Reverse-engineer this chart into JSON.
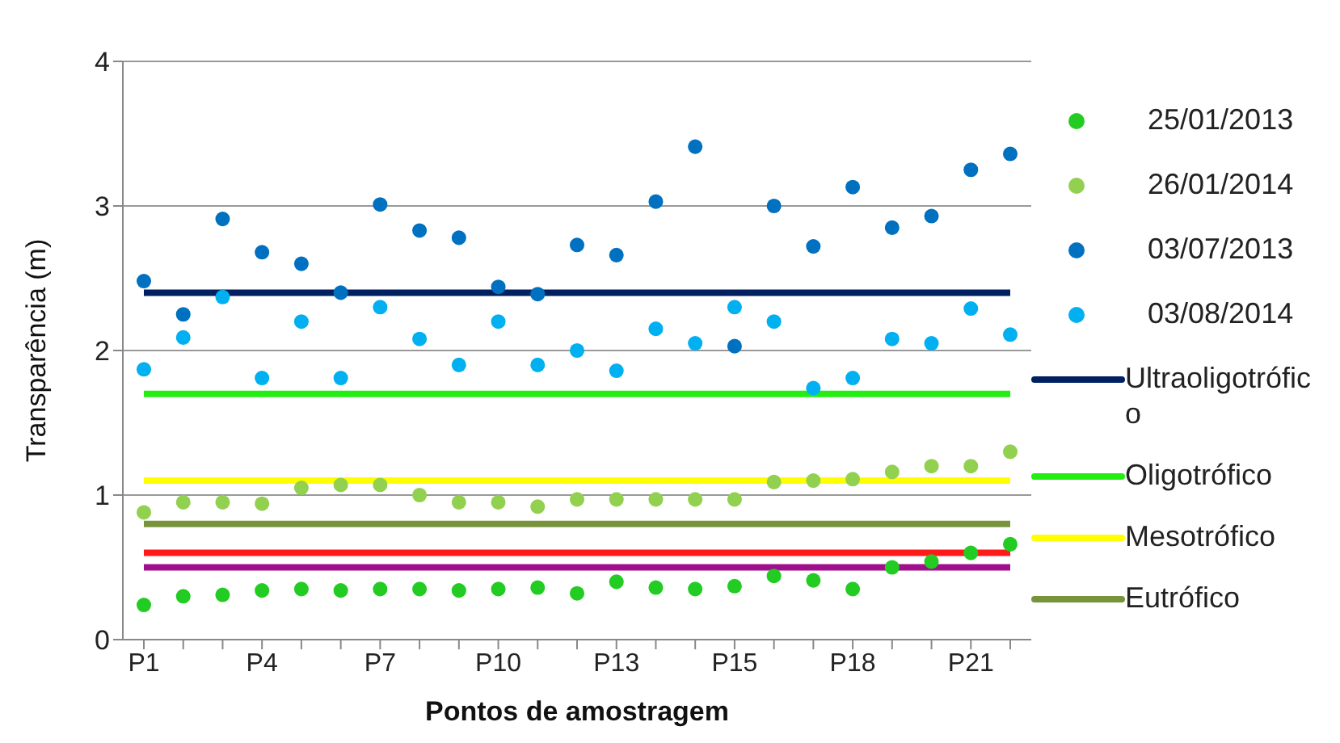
{
  "chart_data": {
    "type": "scatter",
    "xlabel": "Pontos de amostragem",
    "ylabel": "Transparência (m)",
    "categories": [
      "P1",
      null,
      null,
      "P4",
      null,
      null,
      "P7",
      null,
      null,
      "P10",
      null,
      null,
      "P13",
      null,
      null,
      "P15",
      null,
      null,
      "P18",
      null,
      null,
      "P21",
      null
    ],
    "ylim": [
      0,
      4
    ],
    "yticks": [
      0,
      1,
      2,
      3,
      4
    ],
    "grid": "y",
    "legend": "right",
    "series": [
      {
        "name": "25/01/2013",
        "marker": "circle",
        "color": "#22cc22",
        "values": [
          0.24,
          0.3,
          0.31,
          0.34,
          0.35,
          0.34,
          0.35,
          0.35,
          0.34,
          0.35,
          0.36,
          0.32,
          0.4,
          0.36,
          0.35,
          0.37,
          0.44,
          0.41,
          0.35,
          0.5,
          0.54,
          0.6,
          0.66
        ]
      },
      {
        "name": "26/01/2014",
        "marker": "circle",
        "color": "#92d050",
        "values": [
          0.88,
          0.95,
          0.95,
          0.94,
          1.05,
          1.07,
          1.07,
          1.0,
          0.95,
          0.95,
          0.92,
          0.97,
          0.97,
          0.97,
          0.97,
          0.97,
          1.09,
          1.1,
          1.11,
          1.16,
          1.2,
          1.2,
          1.3
        ]
      },
      {
        "name": "03/07/2013",
        "marker": "circle",
        "color": "#0070c0",
        "values": [
          2.48,
          2.25,
          2.91,
          2.68,
          2.6,
          2.4,
          3.01,
          2.83,
          2.78,
          2.44,
          2.39,
          2.73,
          2.66,
          3.03,
          3.41,
          2.03,
          3.0,
          2.72,
          3.13,
          2.85,
          2.93,
          3.25,
          3.36
        ]
      },
      {
        "name": "03/08/2014",
        "marker": "circle",
        "color": "#00b0f0",
        "values": [
          1.87,
          2.09,
          2.37,
          1.81,
          2.2,
          1.81,
          2.3,
          2.08,
          1.9,
          2.2,
          1.9,
          2.0,
          1.86,
          2.15,
          2.05,
          2.3,
          2.2,
          1.74,
          1.81,
          2.08,
          2.05,
          2.29,
          2.11
        ]
      },
      {
        "name": "Ultraoligotrófico",
        "type": "line",
        "color": "#002060",
        "values": [
          2.4,
          2.4,
          2.4,
          2.4,
          2.4,
          2.4,
          2.4,
          2.4,
          2.4,
          2.4,
          2.4,
          2.4,
          2.4,
          2.4,
          2.4,
          2.4,
          2.4,
          2.4,
          2.4,
          2.4,
          2.4,
          2.4,
          2.4
        ]
      },
      {
        "name": "Oligotrófico",
        "type": "line",
        "color": "#22ee11",
        "values": [
          1.7,
          1.7,
          1.7,
          1.7,
          1.7,
          1.7,
          1.7,
          1.7,
          1.7,
          1.7,
          1.7,
          1.7,
          1.7,
          1.7,
          1.7,
          1.7,
          1.7,
          1.7,
          1.7,
          1.7,
          1.7,
          1.7,
          1.7
        ]
      },
      {
        "name": "Mesotrófico",
        "type": "line",
        "color": "#ffff00",
        "values": [
          1.1,
          1.1,
          1.1,
          1.1,
          1.1,
          1.1,
          1.1,
          1.1,
          1.1,
          1.1,
          1.1,
          1.1,
          1.1,
          1.1,
          1.1,
          1.1,
          1.1,
          1.1,
          1.1,
          1.1,
          1.1,
          1.1,
          1.1
        ]
      },
      {
        "name": "Eutrófico",
        "type": "line",
        "color": "#77933c",
        "values": [
          0.8,
          0.8,
          0.8,
          0.8,
          0.8,
          0.8,
          0.8,
          0.8,
          0.8,
          0.8,
          0.8,
          0.8,
          0.8,
          0.8,
          0.8,
          0.8,
          0.8,
          0.8,
          0.8,
          0.8,
          0.8,
          0.8,
          0.8
        ]
      },
      {
        "type": "line",
        "color": "#ff1a1a",
        "values": [
          0.6,
          0.6,
          0.6,
          0.6,
          0.6,
          0.6,
          0.6,
          0.6,
          0.6,
          0.6,
          0.6,
          0.6,
          0.6,
          0.6,
          0.6,
          0.6,
          0.6,
          0.6,
          0.6,
          0.6,
          0.6,
          0.6,
          0.6
        ]
      },
      {
        "type": "line",
        "color": "#a0108c",
        "values": [
          0.5,
          0.5,
          0.5,
          0.5,
          0.5,
          0.5,
          0.5,
          0.5,
          0.5,
          0.5,
          0.5,
          0.5,
          0.5,
          0.5,
          0.5,
          0.5,
          0.5,
          0.5,
          0.5,
          0.5,
          0.5,
          0.5,
          0.5
        ]
      }
    ]
  }
}
